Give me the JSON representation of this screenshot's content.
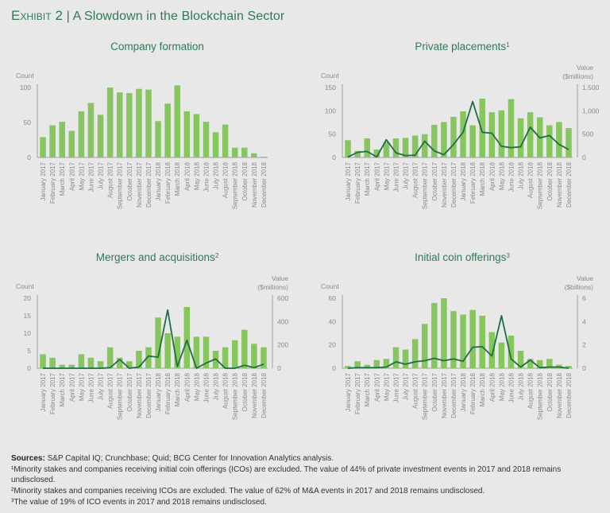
{
  "exhibit": {
    "label": "Exhibit 2",
    "separator": "|",
    "title": "A Slowdown in the Blockchain Sector"
  },
  "colors": {
    "bar": "#87c55f",
    "line": "#1f6e45",
    "title": "#2f7a55",
    "axis": "#a0a0a0",
    "background": "#e8e8e9"
  },
  "chart_data": [
    {
      "id": "company-formation",
      "type": "bar",
      "title": "Company formation",
      "title_sup": "",
      "ylabel": "Count",
      "ylim": [
        0,
        100
      ],
      "yticks": [
        0,
        50,
        100
      ],
      "categories": [
        "January 2017",
        "February 2017",
        "March 2017",
        "April 2017",
        "May 2017",
        "June 2017",
        "July 2017",
        "August 2017",
        "September 2017",
        "October 2017",
        "November 2017",
        "December 2017",
        "January 2018",
        "February 2018",
        "March 2018",
        "April 2018",
        "May 2018",
        "June 2018",
        "July 2018",
        "August 2018",
        "September 2018",
        "October 2018",
        "November 2018",
        "December 2018"
      ],
      "series": [
        {
          "name": "Count",
          "kind": "bar",
          "axis": "left",
          "values": [
            29,
            46,
            51,
            38,
            66,
            78,
            61,
            100,
            93,
            92,
            98,
            97,
            52,
            77,
            103,
            66,
            62,
            51,
            36,
            47,
            14,
            14,
            6,
            1
          ]
        }
      ]
    },
    {
      "id": "private-placements",
      "type": "bar",
      "title": "Private placements",
      "title_sup": "1",
      "ylabel": "Count",
      "ylim": [
        0,
        150
      ],
      "yticks": [
        0,
        50,
        100,
        150
      ],
      "y2label": [
        "Value",
        "($millions)"
      ],
      "y2lim": [
        0,
        1500
      ],
      "y2ticks": [
        0,
        500,
        1000,
        1500
      ],
      "y2ticklabels": [
        "0",
        "500",
        "1,000",
        "1,500"
      ],
      "categories": [
        "January 2017",
        "February 2017",
        "March 2017",
        "April 2017",
        "May 2017",
        "June 2017",
        "July 2017",
        "August 2017",
        "September 2017",
        "October 2017",
        "November 2017",
        "December 2017",
        "January 2018",
        "February 2018",
        "March 2018",
        "April 2018",
        "May 2018",
        "June 2018",
        "July 2018",
        "August 2018",
        "September 2018",
        "October 2018",
        "November 2018",
        "December 2018"
      ],
      "series": [
        {
          "name": "Count",
          "kind": "bar",
          "axis": "left",
          "values": [
            37,
            14,
            41,
            17,
            33,
            41,
            42,
            47,
            50,
            70,
            76,
            87,
            99,
            69,
            126,
            97,
            101,
            125,
            84,
            97,
            86,
            69,
            76,
            63
          ]
        },
        {
          "name": "Value ($millions)",
          "kind": "line",
          "axis": "right",
          "values": [
            10,
            110,
            130,
            10,
            380,
            100,
            40,
            50,
            350,
            140,
            60,
            280,
            540,
            1200,
            540,
            520,
            240,
            210,
            230,
            650,
            420,
            470,
            280,
            170
          ]
        }
      ]
    },
    {
      "id": "mergers-acquisitions",
      "type": "bar",
      "title": "Mergers and acquisitions",
      "title_sup": "2",
      "ylabel": "Count",
      "ylim": [
        0,
        20
      ],
      "yticks": [
        0,
        5,
        10,
        15,
        20
      ],
      "y2label": [
        "Value",
        "($millions)"
      ],
      "y2lim": [
        0,
        600
      ],
      "y2ticks": [
        0,
        200,
        400,
        600
      ],
      "y2ticklabels": [
        "0",
        "200",
        "400",
        "600"
      ],
      "categories": [
        "January 2017",
        "February 2017",
        "March 2017",
        "April 2017",
        "May 2017",
        "June 2017",
        "July 2017",
        "August 2017",
        "September 2017",
        "October 2017",
        "November 2017",
        "December 2017",
        "January 2018",
        "February 2018",
        "March 2018",
        "April 2018",
        "May 2018",
        "June 2018",
        "July 2018",
        "August 2018",
        "September 2018",
        "October 2018",
        "November 2018",
        "December 2018"
      ],
      "series": [
        {
          "name": "Count",
          "kind": "bar",
          "axis": "left",
          "values": [
            4,
            3,
            1,
            1,
            4,
            3,
            2,
            6,
            3,
            2,
            5,
            6,
            14.5,
            10,
            9,
            17.5,
            9,
            9,
            5,
            6,
            8,
            11,
            7,
            6
          ]
        },
        {
          "name": "Value ($millions)",
          "kind": "line",
          "axis": "right",
          "values": [
            0,
            0,
            0,
            0,
            0,
            0,
            0,
            5,
            75,
            0,
            10,
            105,
            95,
            500,
            15,
            240,
            0,
            45,
            80,
            0,
            0,
            25,
            5,
            35
          ]
        }
      ]
    },
    {
      "id": "initial-coin-offerings",
      "type": "bar",
      "title": "Initial coin offerings",
      "title_sup": "3",
      "ylabel": "Count",
      "ylim": [
        0,
        60
      ],
      "yticks": [
        0,
        20,
        40,
        60
      ],
      "y2label": [
        "Value",
        "($billions)"
      ],
      "y2lim": [
        0,
        6
      ],
      "y2ticks": [
        0,
        2,
        4,
        6
      ],
      "y2ticklabels": [
        "0",
        "2",
        "4",
        "6"
      ],
      "categories": [
        "January 2017",
        "February 2017",
        "March 2017",
        "April 2017",
        "May 2017",
        "June 2017",
        "July 2017",
        "August 2017",
        "September 2017",
        "October 2017",
        "November 2017",
        "December 2017",
        "January 2018",
        "February 2018",
        "March 2018",
        "April 2018",
        "May 2018",
        "June 2018",
        "July 2018",
        "August 2018",
        "September 2018",
        "October 2018",
        "November 2018",
        "December 2018"
      ],
      "series": [
        {
          "name": "Count",
          "kind": "bar",
          "axis": "left",
          "values": [
            2,
            6,
            3,
            7,
            8,
            18,
            16,
            25,
            38,
            56,
            60,
            49,
            46,
            50,
            45,
            31,
            22,
            28,
            15,
            8,
            7,
            8,
            3,
            2
          ]
        },
        {
          "name": "Value ($billions)",
          "kind": "line",
          "axis": "right",
          "values": [
            0,
            0.05,
            0.05,
            0.05,
            0.1,
            0.55,
            0.35,
            0.55,
            0.65,
            0.85,
            0.65,
            0.8,
            0.6,
            1.8,
            1.85,
            1.05,
            4.5,
            0.8,
            0.1,
            0.7,
            0.05,
            0.1,
            0.1,
            0
          ]
        }
      ]
    }
  ],
  "footnotes": {
    "sources_label": "Sources:",
    "sources_text": " S&P Capital IQ; Crunchbase; Quid; BCG Center for Innovation Analytics analysis.",
    "notes": [
      "¹Minority stakes and companies receiving initial coin offerings (ICOs) are excluded. The value of 44% of private investment events in 2017 and 2018 remains undisclosed.",
      "²Minority stakes and companies receiving ICOs are excluded. The value of 62% of M&A events in 2017 and 2018 remains undisclosed.",
      "³The value of 19% of ICO events in 2017 and 2018 remains undisclosed."
    ]
  }
}
